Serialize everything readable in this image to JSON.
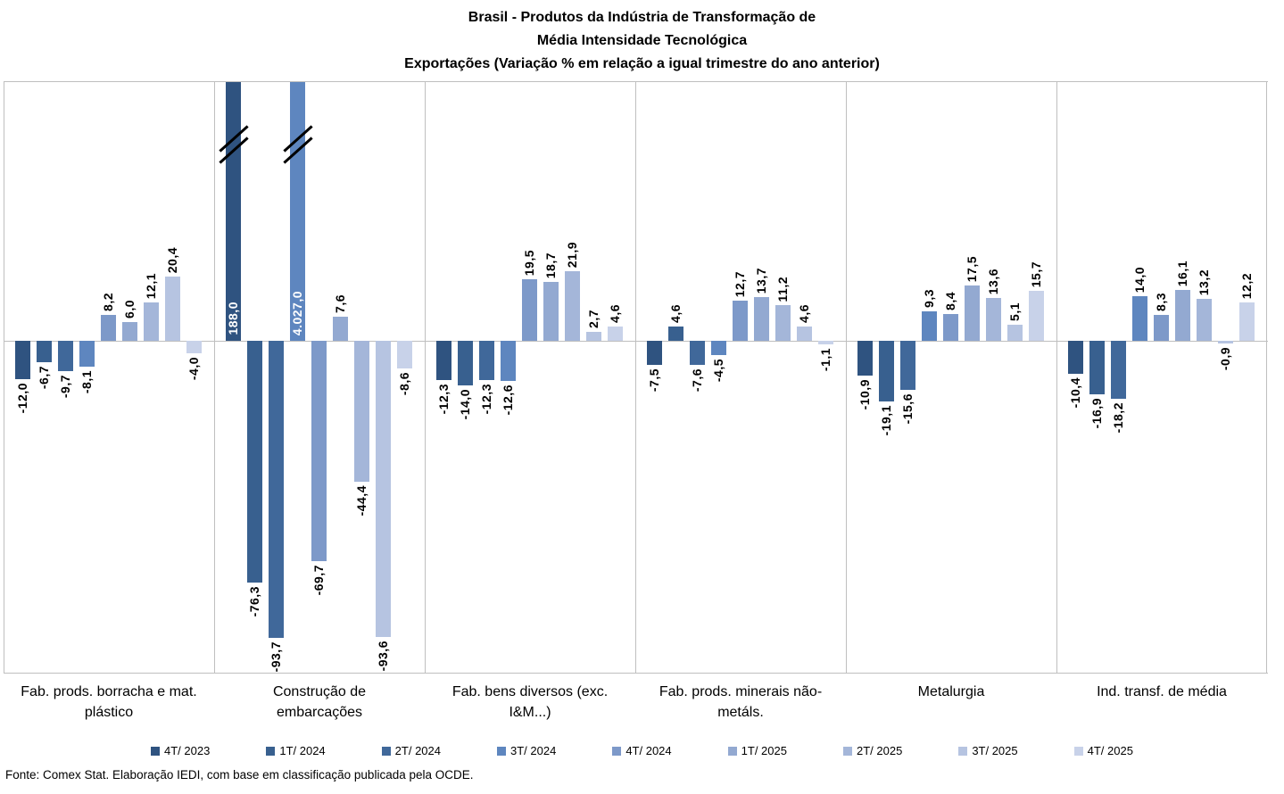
{
  "title": {
    "line1": "Brasil - Produtos da Indústria de Transformação de",
    "line2": "Média Intensidade Tecnológica",
    "line3": "Exportações (Variação % em relação a igual trimestre do ano anterior)"
  },
  "footer": "Fonte: Comex Stat. Elaboração IEDI, com base em classificação publicada pela OCDE.",
  "chart_data": {
    "type": "bar",
    "title": "Brasil - Produtos da Indústria de Transformação de Média Intensidade Tecnológica - Exportações (Variação % em relação a igual trimestre do ano anterior)",
    "unit": "%",
    "legend_position": "bottom",
    "grid": false,
    "ylim_visible": [
      -100,
      81
    ],
    "axis_break_marks": true,
    "grid_color": "#BFBFBF",
    "series_names": [
      "4T/ 2023",
      "1T/ 2024",
      "2T/ 2024",
      "3T/ 2024",
      "4T/ 2024",
      "1T/ 2025",
      "2T/ 2025",
      "3T/ 2025",
      "4T/ 2025"
    ],
    "series_colors": [
      "#2F5380",
      "#38608F",
      "#40689A",
      "#5E86BF",
      "#7D99C9",
      "#93A9D1",
      "#A4B6D9",
      "#B6C4E1",
      "#C8D2E9"
    ],
    "categories": [
      {
        "label": "Fab. prods. borracha e mat. plástico",
        "values": [
          -12.0,
          -6.7,
          -9.7,
          -8.1,
          8.2,
          6.0,
          12.1,
          20.4,
          -4.0
        ],
        "labels": [
          "-12,0",
          "-6,7",
          "-9,7",
          "-8,1",
          "8,2",
          "6,0",
          "12,1",
          "20,4",
          "-4,0"
        ]
      },
      {
        "label": "Construção de embarcações",
        "values": [
          188.0,
          -76.3,
          -93.7,
          4027.0,
          -69.7,
          7.6,
          -44.4,
          -93.6,
          -8.6
        ],
        "labels": [
          "188,0",
          "-76,3",
          "-93,7",
          "4.027,0",
          "-69,7",
          "7,6",
          "-44,4",
          "-93,6",
          "-8,6"
        ]
      },
      {
        "label": "Fab. bens diversos (exc. I&M...)",
        "values": [
          -12.3,
          -14.0,
          -12.3,
          -12.6,
          19.5,
          18.7,
          21.9,
          2.7,
          4.6
        ],
        "labels": [
          "-12,3",
          "-14,0",
          "-12,3",
          "-12,6",
          "19,5",
          "18,7",
          "21,9",
          "2,7",
          "4,6"
        ]
      },
      {
        "label": "Fab. prods. minerais não-metáls.",
        "values": [
          -7.5,
          4.6,
          -7.6,
          -4.5,
          12.7,
          13.7,
          11.2,
          4.6,
          -1.1
        ],
        "labels": [
          "-7,5",
          "4,6",
          "-7,6",
          "-4,5",
          "12,7",
          "13,7",
          "11,2",
          "4,6",
          "-1,1"
        ]
      },
      {
        "label": "Metalurgia",
        "values": [
          -10.9,
          -19.1,
          -15.6,
          9.3,
          8.4,
          17.5,
          13.6,
          5.1,
          15.7
        ],
        "labels": [
          "-10,9",
          "-19,1",
          "-15,6",
          "9,3",
          "8,4",
          "17,5",
          "13,6",
          "5,1",
          "15,7"
        ]
      },
      {
        "label": "Ind. transf. de média",
        "values": [
          -10.4,
          -16.9,
          -18.2,
          14.0,
          8.3,
          16.1,
          13.2,
          -0.9,
          12.2
        ],
        "labels": [
          "-10,4",
          "-16,9",
          "-18,2",
          "14,0",
          "8,3",
          "16,1",
          "13,2",
          "-0,9",
          "12,2"
        ]
      }
    ]
  }
}
